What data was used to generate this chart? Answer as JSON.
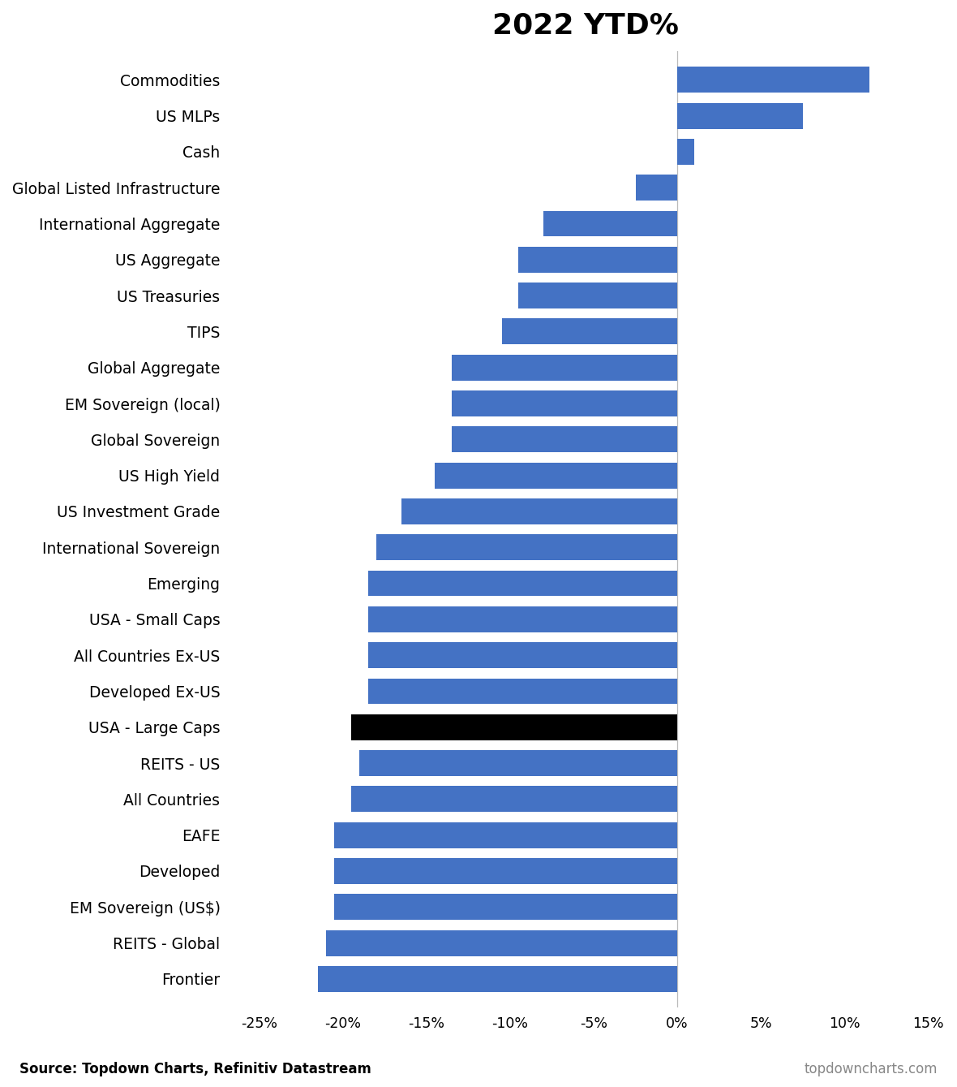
{
  "title": "2022 YTD%",
  "categories": [
    "Commodities",
    "US MLPs",
    "Cash",
    "Global Listed Infrastructure",
    "International Aggregate",
    "US Aggregate",
    "US Treasuries",
    "TIPS",
    "Global Aggregate",
    "EM Sovereign (local)",
    "Global Sovereign",
    "US High Yield",
    "US Investment Grade",
    "International Sovereign",
    "Emerging",
    "USA - Small Caps",
    "All Countries Ex-US",
    "Developed Ex-US",
    "USA - Large Caps",
    "REITS - US",
    "All Countries",
    "EAFE",
    "Developed",
    "EM Sovereign (US$)",
    "REITS - Global",
    "Frontier"
  ],
  "values": [
    11.5,
    7.5,
    1.0,
    -2.5,
    -8.0,
    -9.5,
    -9.5,
    -10.5,
    -13.5,
    -13.5,
    -13.5,
    -14.5,
    -16.5,
    -18.0,
    -18.5,
    -18.5,
    -18.5,
    -18.5,
    -19.5,
    -19.0,
    -19.5,
    -20.5,
    -20.5,
    -20.5,
    -21.0,
    -21.5
  ],
  "bar_colors": [
    "#4472C4",
    "#4472C4",
    "#4472C4",
    "#4472C4",
    "#4472C4",
    "#4472C4",
    "#4472C4",
    "#4472C4",
    "#4472C4",
    "#4472C4",
    "#4472C4",
    "#4472C4",
    "#4472C4",
    "#4472C4",
    "#4472C4",
    "#4472C4",
    "#4472C4",
    "#4472C4",
    "#000000",
    "#4472C4",
    "#4472C4",
    "#4472C4",
    "#4472C4",
    "#4472C4",
    "#4472C4",
    "#4472C4"
  ],
  "xlim": [
    -27,
    16
  ],
  "xticks": [
    -25,
    -20,
    -15,
    -10,
    -5,
    0,
    5,
    10,
    15
  ],
  "xtick_labels": [
    "-25%",
    "-20%",
    "-15%",
    "-10%",
    "-5%",
    "0%",
    "5%",
    "10%",
    "15%"
  ],
  "source_text": "Source: Topdown Charts, Refinitiv Datastream",
  "source_right": "topdowncharts.com",
  "bar_height": 0.72,
  "title_fontsize": 26,
  "label_fontsize": 13.5,
  "tick_fontsize": 12.5,
  "source_fontsize": 12,
  "background_color": "#ffffff",
  "zero_line_color": "#bbbbbb"
}
